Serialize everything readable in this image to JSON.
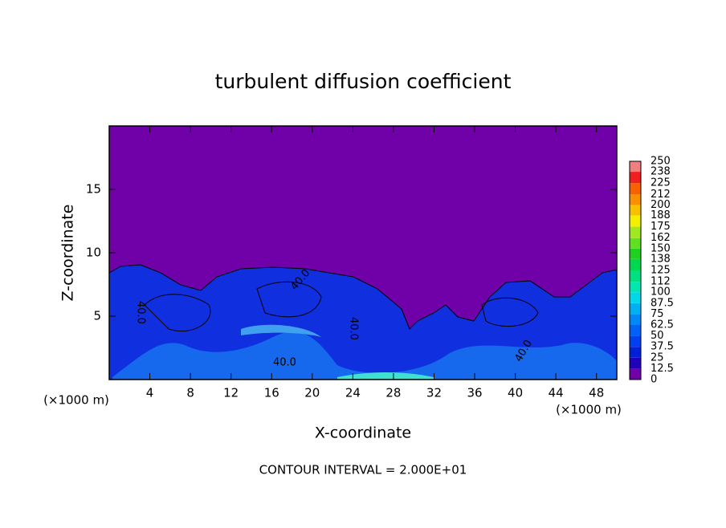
{
  "chart_data": {
    "type": "contour",
    "title": "turbulent diffusion coefficient",
    "x_label": "X-coordinate",
    "y_label": "Z-coordinate",
    "x_unit": "(×1000 m)",
    "footer": "CONTOUR INTERVAL = 2.000E+01",
    "xlim": [
      0,
      50
    ],
    "xticks": [
      4,
      8,
      12,
      16,
      20,
      24,
      28,
      32,
      36,
      40,
      44,
      48
    ],
    "ylim": [
      0,
      20
    ],
    "yticks": [
      5,
      10,
      15
    ],
    "contour_level": {
      "value": 40,
      "label": "40.0"
    },
    "colorbar": {
      "levels": [
        0,
        12.5,
        25,
        37.5,
        50,
        62.5,
        75,
        87.5,
        100,
        112,
        125,
        138,
        150,
        162,
        175,
        188,
        200,
        212,
        225,
        238,
        250
      ],
      "colors": [
        "#7000a8",
        "#2000b8",
        "#0020d8",
        "#0040f0",
        "#0060f8",
        "#0088f8",
        "#00b0f0",
        "#00d8e8",
        "#00e8b0",
        "#00e080",
        "#00d850",
        "#20d020",
        "#60e020",
        "#a0e820",
        "#f0f000",
        "#f8c000",
        "#f89000",
        "#f86000",
        "#f02020",
        "#f08080"
      ]
    }
  }
}
